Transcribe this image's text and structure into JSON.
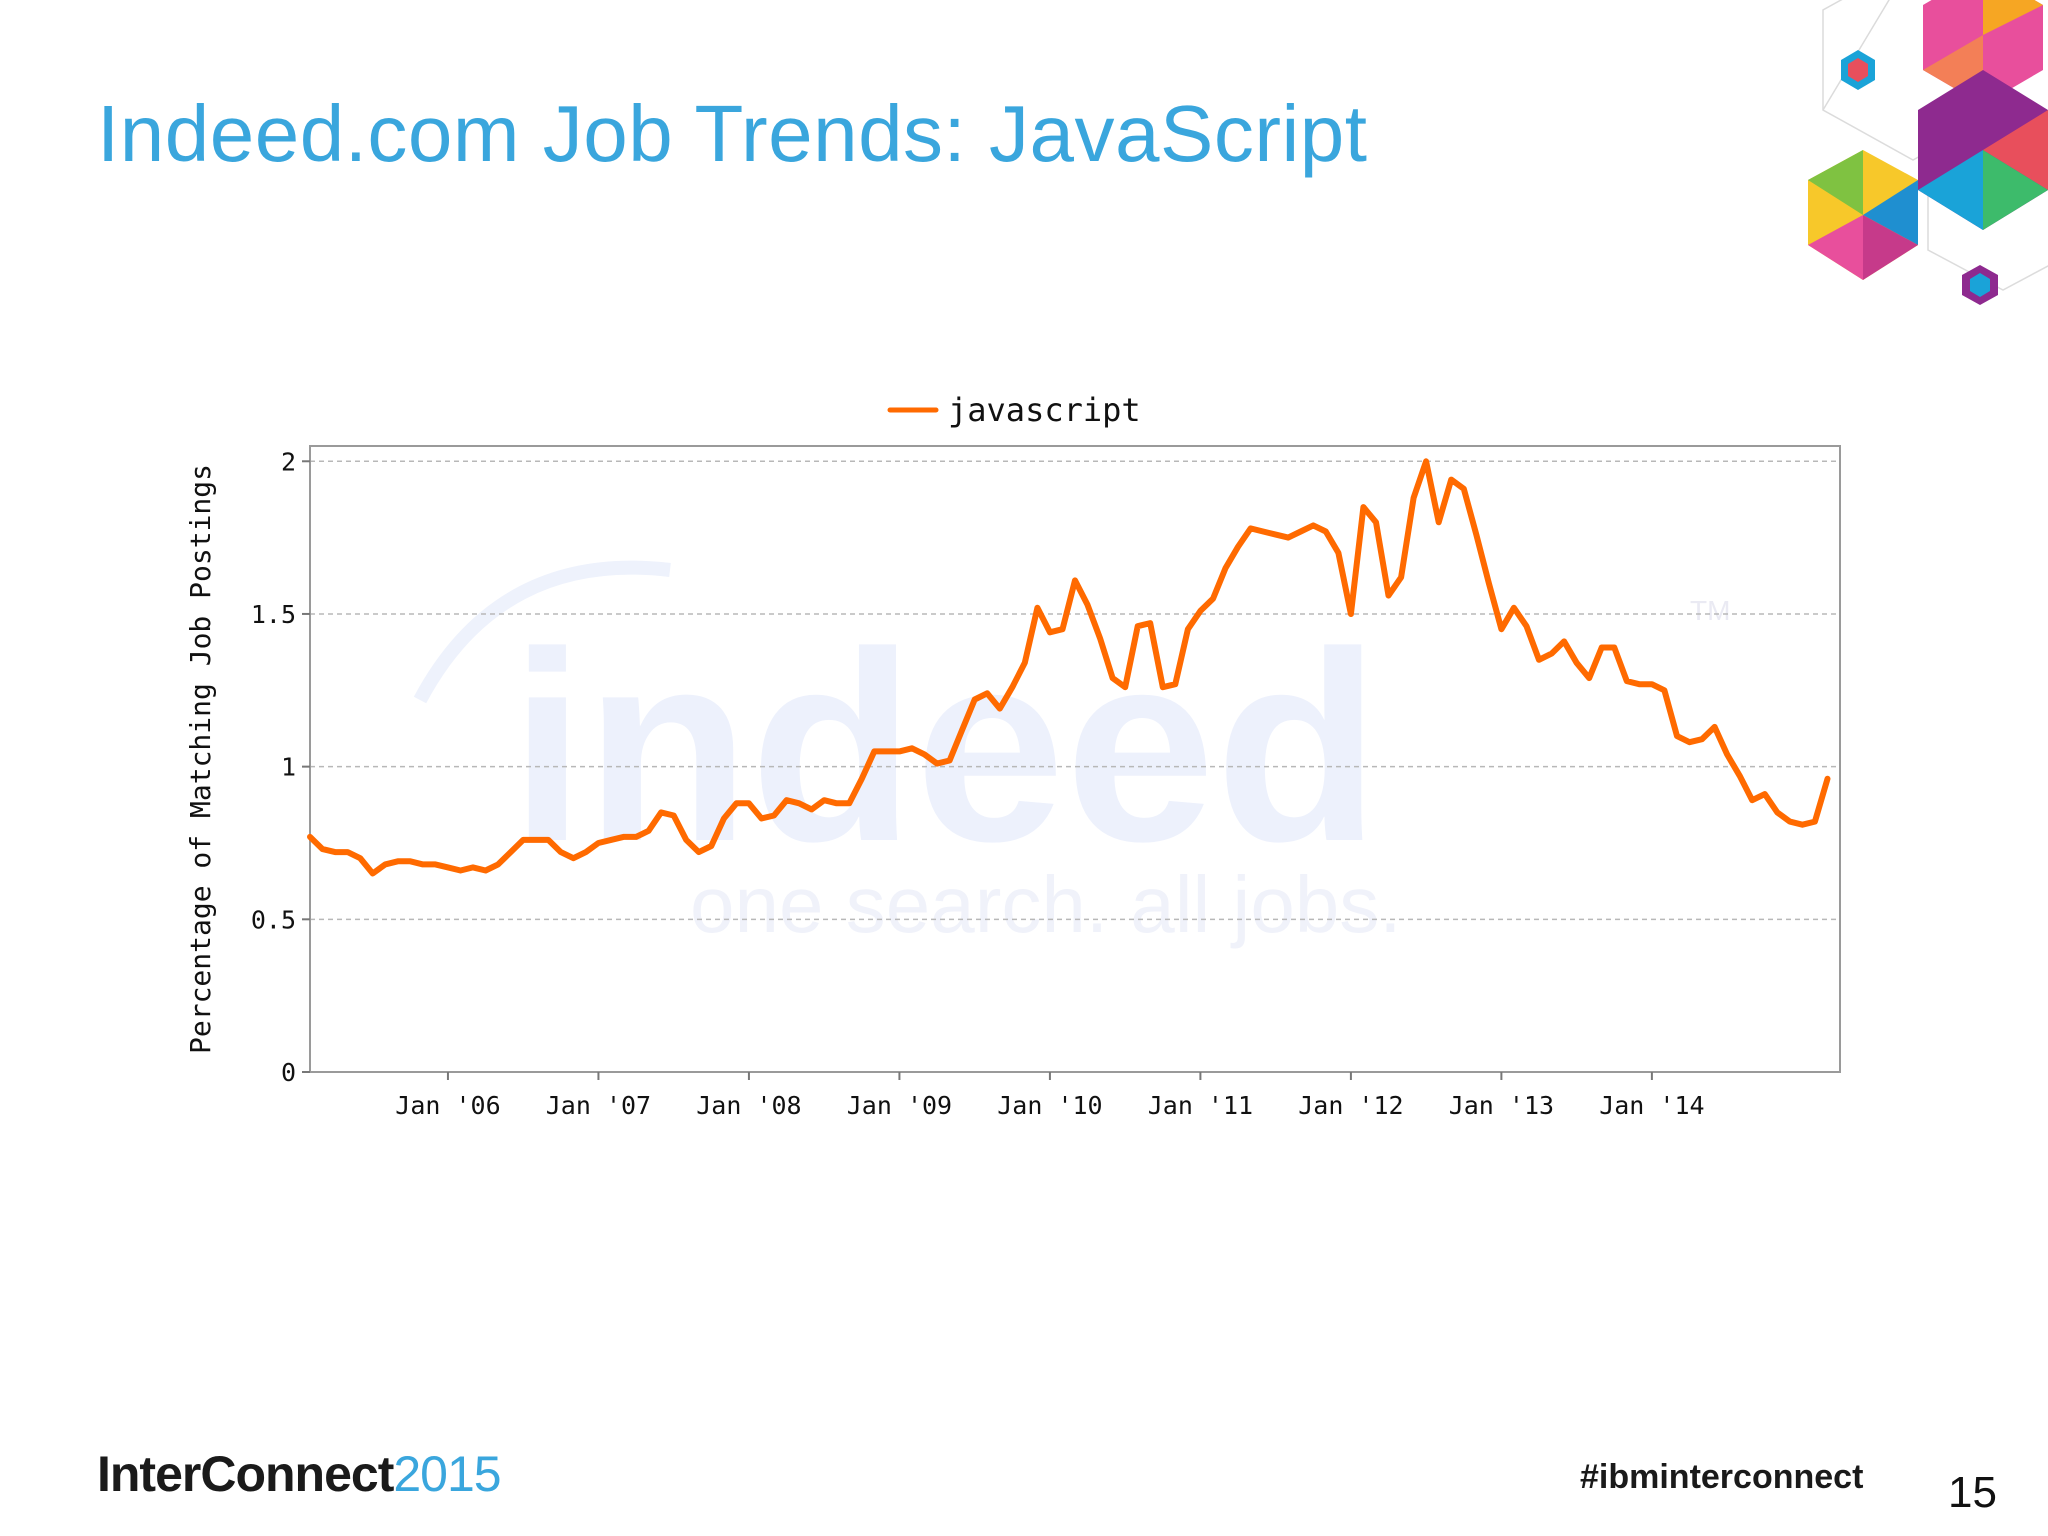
{
  "slide": {
    "title": "Indeed.com Job Trends: JavaScript",
    "footer_brand": "InterConnect",
    "footer_year": "2015",
    "hashtag": "#ibminterconnect",
    "page_number": "15"
  },
  "watermark": {
    "logo": "indeed",
    "tagline": "one search. all jobs.",
    "tm": "TM"
  },
  "colors": {
    "title": "#3aa6dd",
    "series": "#ff6a00",
    "grid": "#b8b8b8",
    "watermark": "#e8eefc"
  },
  "chart_data": {
    "type": "line",
    "title": "",
    "xlabel": "",
    "ylabel": "Percentage of Matching Job Postings",
    "ylim": [
      0,
      2
    ],
    "yticks": [
      "0",
      "0.5",
      "1",
      "1.5",
      "2"
    ],
    "xlim": [
      "2005-02",
      "2014-12"
    ],
    "xticks": [
      {
        "label": "Jan '06",
        "date": "2006-01"
      },
      {
        "label": "Jan '07",
        "date": "2007-01"
      },
      {
        "label": "Jan '08",
        "date": "2008-01"
      },
      {
        "label": "Jan '09",
        "date": "2009-01"
      },
      {
        "label": "Jan '10",
        "date": "2010-01"
      },
      {
        "label": "Jan '11",
        "date": "2011-01"
      },
      {
        "label": "Jan '12",
        "date": "2012-01"
      },
      {
        "label": "Jan '13",
        "date": "2013-01"
      },
      {
        "label": "Jan '14",
        "date": "2014-01"
      }
    ],
    "grid": true,
    "legend": "top-center",
    "series": [
      {
        "name": "javascript",
        "points": [
          [
            "2005-02",
            0.77
          ],
          [
            "2005-03",
            0.73
          ],
          [
            "2005-04",
            0.72
          ],
          [
            "2005-05",
            0.72
          ],
          [
            "2005-06",
            0.7
          ],
          [
            "2005-07",
            0.65
          ],
          [
            "2005-08",
            0.68
          ],
          [
            "2005-09",
            0.69
          ],
          [
            "2005-10",
            0.69
          ],
          [
            "2005-11",
            0.68
          ],
          [
            "2005-12",
            0.68
          ],
          [
            "2006-01",
            0.67
          ],
          [
            "2006-02",
            0.66
          ],
          [
            "2006-03",
            0.67
          ],
          [
            "2006-04",
            0.66
          ],
          [
            "2006-05",
            0.68
          ],
          [
            "2006-06",
            0.72
          ],
          [
            "2006-07",
            0.76
          ],
          [
            "2006-08",
            0.76
          ],
          [
            "2006-09",
            0.76
          ],
          [
            "2006-10",
            0.72
          ],
          [
            "2006-11",
            0.7
          ],
          [
            "2006-12",
            0.72
          ],
          [
            "2007-01",
            0.75
          ],
          [
            "2007-02",
            0.76
          ],
          [
            "2007-03",
            0.77
          ],
          [
            "2007-04",
            0.77
          ],
          [
            "2007-05",
            0.79
          ],
          [
            "2007-06",
            0.85
          ],
          [
            "2007-07",
            0.84
          ],
          [
            "2007-08",
            0.76
          ],
          [
            "2007-09",
            0.72
          ],
          [
            "2007-10",
            0.74
          ],
          [
            "2007-11",
            0.83
          ],
          [
            "2007-12",
            0.88
          ],
          [
            "2008-01",
            0.88
          ],
          [
            "2008-02",
            0.83
          ],
          [
            "2008-03",
            0.84
          ],
          [
            "2008-04",
            0.89
          ],
          [
            "2008-05",
            0.88
          ],
          [
            "2008-06",
            0.86
          ],
          [
            "2008-07",
            0.89
          ],
          [
            "2008-08",
            0.88
          ],
          [
            "2008-09",
            0.88
          ],
          [
            "2008-10",
            0.96
          ],
          [
            "2008-11",
            1.05
          ],
          [
            "2008-12",
            1.05
          ],
          [
            "2009-01",
            1.05
          ],
          [
            "2009-02",
            1.06
          ],
          [
            "2009-03",
            1.04
          ],
          [
            "2009-04",
            1.01
          ],
          [
            "2009-05",
            1.02
          ],
          [
            "2009-06",
            1.12
          ],
          [
            "2009-07",
            1.22
          ],
          [
            "2009-08",
            1.24
          ],
          [
            "2009-09",
            1.19
          ],
          [
            "2009-10",
            1.26
          ],
          [
            "2009-11",
            1.34
          ],
          [
            "2009-12",
            1.52
          ],
          [
            "2010-01",
            1.44
          ],
          [
            "2010-02",
            1.45
          ],
          [
            "2010-03",
            1.61
          ],
          [
            "2010-04",
            1.53
          ],
          [
            "2010-05",
            1.42
          ],
          [
            "2010-06",
            1.29
          ],
          [
            "2010-07",
            1.26
          ],
          [
            "2010-08",
            1.46
          ],
          [
            "2010-09",
            1.47
          ],
          [
            "2010-10",
            1.26
          ],
          [
            "2010-11",
            1.27
          ],
          [
            "2010-12",
            1.45
          ],
          [
            "2011-01",
            1.51
          ],
          [
            "2011-02",
            1.55
          ],
          [
            "2011-03",
            1.65
          ],
          [
            "2011-04",
            1.72
          ],
          [
            "2011-05",
            1.78
          ],
          [
            "2011-06",
            1.77
          ],
          [
            "2011-07",
            1.76
          ],
          [
            "2011-08",
            1.75
          ],
          [
            "2011-09",
            1.77
          ],
          [
            "2011-10",
            1.79
          ],
          [
            "2011-11",
            1.77
          ],
          [
            "2011-12",
            1.7
          ],
          [
            "2012-01",
            1.5
          ],
          [
            "2012-02",
            1.85
          ],
          [
            "2012-03",
            1.8
          ],
          [
            "2012-04",
            1.56
          ],
          [
            "2012-05",
            1.62
          ],
          [
            "2012-06",
            1.88
          ],
          [
            "2012-07",
            2.0
          ],
          [
            "2012-08",
            1.8
          ],
          [
            "2012-09",
            1.94
          ],
          [
            "2012-10",
            1.91
          ],
          [
            "2012-11",
            1.76
          ],
          [
            "2012-12",
            1.6
          ],
          [
            "2013-01",
            1.45
          ],
          [
            "2013-02",
            1.52
          ],
          [
            "2013-03",
            1.46
          ],
          [
            "2013-04",
            1.35
          ],
          [
            "2013-05",
            1.37
          ],
          [
            "2013-06",
            1.41
          ],
          [
            "2013-07",
            1.34
          ],
          [
            "2013-08",
            1.29
          ],
          [
            "2013-09",
            1.39
          ],
          [
            "2013-10",
            1.39
          ],
          [
            "2013-11",
            1.28
          ],
          [
            "2013-12",
            1.27
          ],
          [
            "2014-01",
            1.27
          ],
          [
            "2014-02",
            1.25
          ],
          [
            "2014-03",
            1.1
          ],
          [
            "2014-04",
            1.08
          ],
          [
            "2014-05",
            1.09
          ],
          [
            "2014-06",
            1.13
          ],
          [
            "2014-07",
            1.04
          ],
          [
            "2014-08",
            0.97
          ],
          [
            "2014-09",
            0.89
          ],
          [
            "2014-10",
            0.91
          ],
          [
            "2014-11",
            0.85
          ],
          [
            "2014-12",
            0.82
          ],
          [
            "2015-01",
            0.81
          ],
          [
            "2015-02",
            0.82
          ],
          [
            "2015-03",
            0.96
          ]
        ]
      }
    ]
  }
}
